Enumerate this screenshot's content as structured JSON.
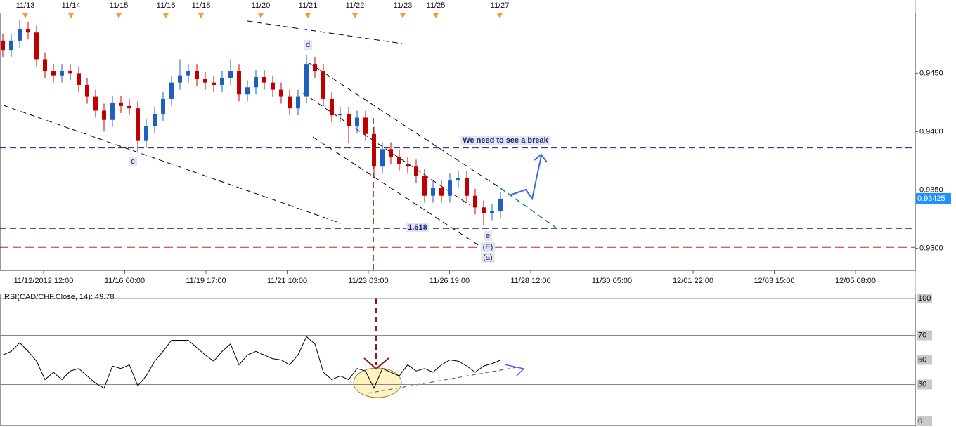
{
  "chart_data": [
    {
      "type": "candlestick",
      "up_color": "#1f5fbf",
      "down_color": "#c00000",
      "open": [
        0.9478,
        0.947,
        0.9478,
        0.9488,
        0.9485,
        0.9462,
        0.9452,
        0.9448,
        0.9452,
        0.945,
        0.944,
        0.943,
        0.9418,
        0.941,
        0.9425,
        0.9422,
        0.942,
        0.9392,
        0.9405,
        0.9415,
        0.9428,
        0.9442,
        0.9448,
        0.9452,
        0.9445,
        0.9442,
        0.944,
        0.9446,
        0.9452,
        0.9432,
        0.9438,
        0.9447,
        0.9442,
        0.9436,
        0.943,
        0.942,
        0.943,
        0.9458,
        0.9452,
        0.9428,
        0.9414,
        0.9415,
        0.9405,
        0.9412,
        0.9398,
        0.937,
        0.9385,
        0.9378,
        0.9372,
        0.937,
        0.9362,
        0.9345,
        0.9352,
        0.9345,
        0.9358,
        0.936,
        0.9345,
        0.9335,
        0.933,
        0.9332
      ],
      "high": [
        0.9484,
        0.9484,
        0.9496,
        0.9494,
        0.9491,
        0.9468,
        0.9458,
        0.9458,
        0.9458,
        0.9456,
        0.9446,
        0.9436,
        0.9424,
        0.9431,
        0.9431,
        0.9428,
        0.9426,
        0.9411,
        0.9421,
        0.9434,
        0.9448,
        0.9462,
        0.9458,
        0.9458,
        0.9451,
        0.9448,
        0.9452,
        0.9462,
        0.9458,
        0.9444,
        0.9453,
        0.9453,
        0.9448,
        0.9442,
        0.9436,
        0.9436,
        0.9466,
        0.9464,
        0.9458,
        0.9434,
        0.9421,
        0.9421,
        0.9418,
        0.9418,
        0.9404,
        0.9391,
        0.9391,
        0.9384,
        0.9378,
        0.9376,
        0.9368,
        0.9358,
        0.9358,
        0.9364,
        0.9366,
        0.9366,
        0.9351,
        0.9341,
        0.9338,
        0.9348
      ],
      "low": [
        0.9464,
        0.9464,
        0.9472,
        0.9479,
        0.9456,
        0.9446,
        0.9442,
        0.9442,
        0.9444,
        0.9434,
        0.9424,
        0.9412,
        0.94,
        0.9404,
        0.9416,
        0.9414,
        0.9383,
        0.9386,
        0.9399,
        0.9409,
        0.9422,
        0.9436,
        0.9442,
        0.9439,
        0.9436,
        0.9434,
        0.9434,
        0.944,
        0.9426,
        0.9426,
        0.9432,
        0.9436,
        0.943,
        0.9424,
        0.9414,
        0.9414,
        0.9424,
        0.9446,
        0.9422,
        0.9408,
        0.9408,
        0.939,
        0.9399,
        0.9392,
        0.936,
        0.9364,
        0.9372,
        0.9366,
        0.9364,
        0.9356,
        0.9339,
        0.9339,
        0.9339,
        0.9339,
        0.9352,
        0.9339,
        0.9329,
        0.932,
        0.9324,
        0.9326
      ],
      "close": [
        0.947,
        0.9478,
        0.9488,
        0.9485,
        0.9462,
        0.9452,
        0.9448,
        0.9452,
        0.945,
        0.944,
        0.943,
        0.9418,
        0.941,
        0.9425,
        0.9422,
        0.942,
        0.9392,
        0.9405,
        0.9415,
        0.9428,
        0.9442,
        0.9448,
        0.9452,
        0.9445,
        0.9442,
        0.944,
        0.9446,
        0.9452,
        0.9432,
        0.9438,
        0.9447,
        0.9442,
        0.9436,
        0.943,
        0.942,
        0.943,
        0.9458,
        0.9452,
        0.9428,
        0.9414,
        0.9415,
        0.9405,
        0.9412,
        0.9398,
        0.937,
        0.9385,
        0.9378,
        0.9372,
        0.937,
        0.9362,
        0.9345,
        0.9352,
        0.9345,
        0.9358,
        0.936,
        0.9345,
        0.9335,
        0.933,
        0.9332,
        0.93425
      ],
      "ylim": [
        0.9281,
        0.9502
      ],
      "yticks": [
        {
          "value": 0.93,
          "label": "0.9300"
        },
        {
          "value": 0.935,
          "label": "0.9350"
        },
        {
          "value": 0.94,
          "label": "0.9400"
        },
        {
          "value": 0.945,
          "label": "0.9450"
        }
      ],
      "price_marker": 0.93425,
      "x_labels": [
        "11/12/2012 12:00",
        "11/16 00:00",
        "11/19 17:00",
        "11/21 10:00",
        "11/23 03:00",
        "11/26 19:00",
        "11/28 12:00",
        "11/30 05:00",
        "12/01 22:00",
        "12/03 15:00",
        "12/05 08:00"
      ],
      "session_dates": [
        "11/13",
        "11/14",
        "11/15",
        "11/16",
        "11/18",
        "11/20",
        "11/21",
        "11/22",
        "11/23",
        "11/25",
        "11/27"
      ],
      "levels": [
        {
          "value": 0.9386,
          "color": "#1a237e"
        },
        {
          "value": 0.9317,
          "color": "#1a237e"
        },
        {
          "value": 0.9301,
          "color": "#c62828"
        }
      ],
      "annotations": [
        "We need to see a break",
        "1.618",
        "c",
        "d",
        "e",
        "(E)",
        "(a)"
      ]
    },
    {
      "type": "line",
      "title": "RSI(CAD/CHF.Close, 14): 49.78",
      "color": "#000000",
      "values": [
        54,
        57,
        64,
        57,
        49,
        34,
        40,
        34,
        41,
        43,
        37,
        31,
        27,
        45,
        43,
        46,
        29,
        37,
        49,
        57,
        66,
        66,
        66,
        60,
        54,
        49,
        57,
        63,
        46,
        54,
        57,
        54,
        51,
        50,
        46,
        54,
        69,
        63,
        40,
        34,
        37,
        34,
        43,
        41,
        27,
        43,
        40,
        37,
        46,
        41,
        43,
        40,
        46,
        50,
        49,
        45,
        40,
        45,
        47,
        49.78
      ],
      "ylim": [
        0,
        100
      ],
      "yticks": [
        0,
        30,
        50,
        70,
        100
      ]
    }
  ]
}
